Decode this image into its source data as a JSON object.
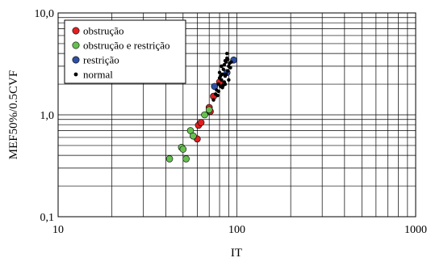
{
  "chart_data": {
    "type": "scatter",
    "title": "",
    "xlabel": "IT",
    "ylabel": "MEF50%/0.5CVF",
    "x_scale": "log",
    "y_scale": "log",
    "xlim": [
      10,
      1000
    ],
    "ylim": [
      0.1,
      10
    ],
    "x_ticks": [
      "10",
      "100",
      "1000"
    ],
    "y_ticks": [
      "0,1",
      "1,0",
      "10,0"
    ],
    "grid": true,
    "legend_position": "top-left",
    "series": [
      {
        "name": "obstrução",
        "color": "#e02020",
        "marker_size": 4,
        "points": [
          [
            60,
            0.58
          ],
          [
            61,
            0.79
          ],
          [
            63,
            0.84
          ],
          [
            70,
            1.18
          ],
          [
            71,
            1.08
          ],
          [
            74,
            1.52
          ],
          [
            80,
            2.1
          ]
        ]
      },
      {
        "name": "obstrução e restrição",
        "color": "#66c050",
        "marker_size": 4,
        "points": [
          [
            42,
            0.37
          ],
          [
            49,
            0.48
          ],
          [
            50,
            0.46
          ],
          [
            52,
            0.37
          ],
          [
            55,
            0.7
          ],
          [
            57,
            0.62
          ],
          [
            66,
            1.0
          ],
          [
            70,
            1.12
          ]
        ]
      },
      {
        "name": "restrição",
        "color": "#2f4fa3",
        "marker_size": 4,
        "points": [
          [
            75,
            1.9
          ],
          [
            96,
            3.45
          ],
          [
            88,
            2.6
          ]
        ]
      },
      {
        "name": "normal",
        "color": "#000000",
        "marker_size": 2.2,
        "points": [
          [
            74,
            1.4
          ],
          [
            76,
            1.6
          ],
          [
            77,
            1.75
          ],
          [
            78,
            1.55
          ],
          [
            79,
            2.0
          ],
          [
            80,
            2.3
          ],
          [
            81,
            1.9
          ],
          [
            82,
            2.2
          ],
          [
            83,
            2.5
          ],
          [
            84,
            2.8
          ],
          [
            85,
            3.1
          ],
          [
            86,
            2.4
          ],
          [
            87,
            3.3
          ],
          [
            88,
            3.6
          ],
          [
            89,
            2.7
          ],
          [
            90,
            3.0
          ],
          [
            91,
            3.2
          ],
          [
            92,
            2.9
          ],
          [
            80,
            2.6
          ],
          [
            82,
            3.0
          ],
          [
            84,
            1.95
          ],
          [
            86,
            3.4
          ],
          [
            88,
            4.0
          ],
          [
            90,
            2.2
          ],
          [
            83,
            1.85
          ],
          [
            85,
            2.1
          ],
          [
            87,
            2.5
          ],
          [
            89,
            3.5
          ],
          [
            81,
            2.4
          ],
          [
            93,
            3.3
          ],
          [
            79,
            1.7
          ],
          [
            86,
            2.0
          ]
        ]
      }
    ]
  }
}
